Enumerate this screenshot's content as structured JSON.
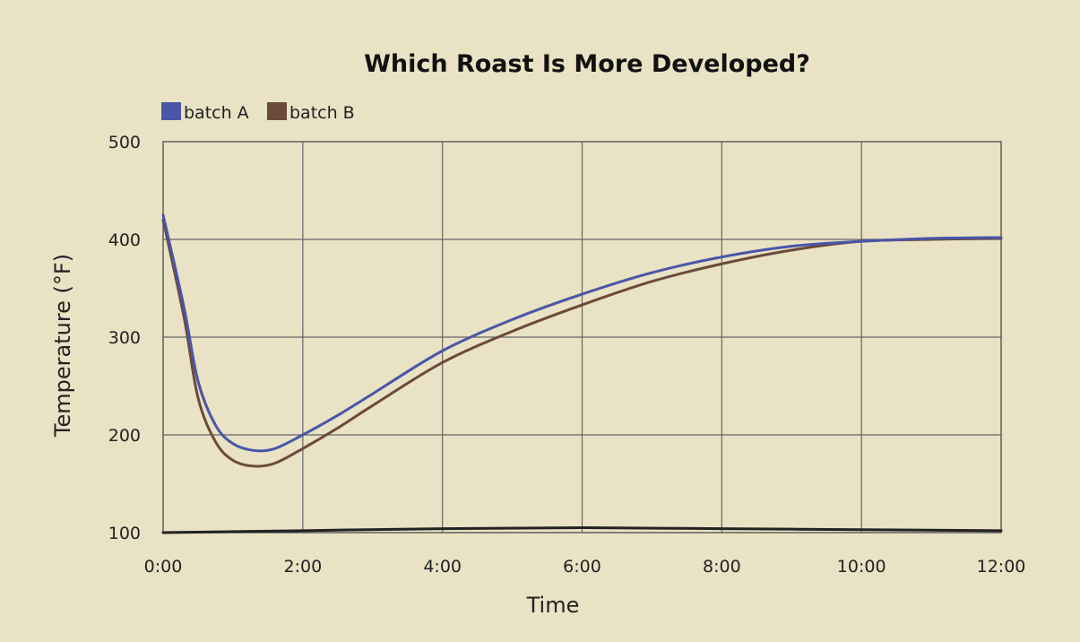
{
  "chart_data": {
    "type": "line",
    "title": "Which Roast Is More Developed?",
    "xlabel": "Time",
    "ylabel": "Temperature (°F)",
    "xlim": [
      0,
      12
    ],
    "ylim": [
      100,
      500
    ],
    "x_ticks": [
      0,
      2,
      4,
      6,
      8,
      10,
      12
    ],
    "x_tick_labels": [
      "0:00",
      "2:00",
      "4:00",
      "6:00",
      "8:00",
      "10:00",
      "12:00"
    ],
    "y_ticks": [
      100,
      200,
      300,
      400,
      500
    ],
    "y_tick_labels": [
      "100",
      "200",
      "300",
      "400",
      "500"
    ],
    "grid": true,
    "legend_position": "top-left",
    "series": [
      {
        "name": "batch A",
        "color": "#4a55a8",
        "x": [
          0,
          0.3,
          0.5,
          0.75,
          1.0,
          1.3,
          1.6,
          2.0,
          2.5,
          3.0,
          4.0,
          5.0,
          6.0,
          7.0,
          8.0,
          9.0,
          10.0,
          11.0,
          12.0
        ],
        "y": [
          425,
          330,
          255,
          210,
          191,
          184,
          186,
          200,
          220,
          242,
          286,
          318,
          344,
          366,
          382,
          393,
          398,
          401,
          402
        ]
      },
      {
        "name": "batch B",
        "color": "#6b4a3a",
        "x": [
          0,
          0.3,
          0.5,
          0.75,
          1.0,
          1.3,
          1.6,
          2.0,
          2.5,
          3.0,
          4.0,
          5.0,
          6.0,
          7.0,
          8.0,
          9.0,
          10.0,
          11.0,
          12.0
        ],
        "y": [
          420,
          320,
          238,
          193,
          174,
          168,
          171,
          186,
          207,
          230,
          274,
          306,
          333,
          357,
          375,
          389,
          398,
          400,
          401
        ]
      },
      {
        "x": [
          0,
          2,
          4,
          6,
          8,
          10,
          12
        ],
        "y": [
          100,
          102,
          104,
          105,
          104,
          103,
          102
        ],
        "color": "#222222"
      }
    ]
  }
}
